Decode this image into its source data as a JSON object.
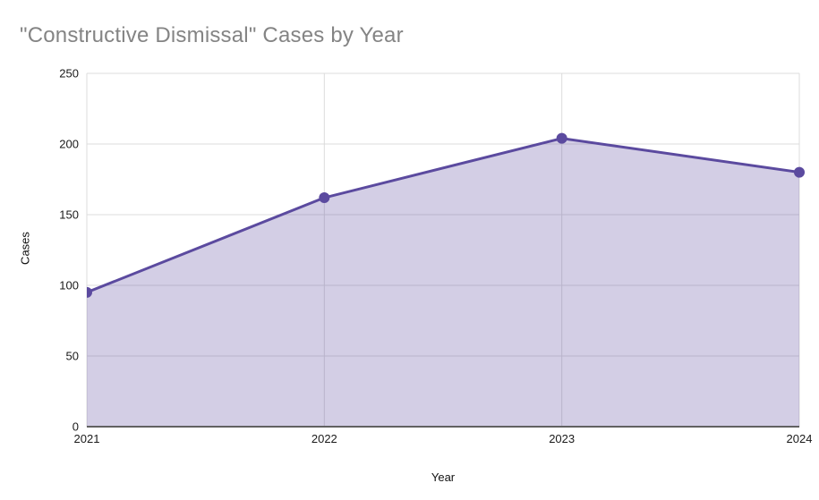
{
  "chart_data": {
    "type": "area",
    "title": "\"Constructive Dismissal\" Cases by Year",
    "xlabel": "Year",
    "ylabel": "Cases",
    "categories": [
      "2021",
      "2022",
      "2023",
      "2024"
    ],
    "series": [
      {
        "name": "Cases",
        "values": [
          95,
          162,
          204,
          180
        ]
      }
    ],
    "ylim": [
      0,
      250
    ],
    "y_ticks": [
      0,
      50,
      100,
      150,
      200,
      250
    ],
    "grid": "on",
    "legend": "none",
    "colors": {
      "series_line": "#5b4a9f",
      "series_fill": "#5b4a9f",
      "series_fill_opacity": 0.27,
      "gridline": "#dcdcdc",
      "axis_line": "#616161",
      "title_text": "#848484",
      "tick_text": "#1a1a1a",
      "background": "#ffffff"
    }
  }
}
